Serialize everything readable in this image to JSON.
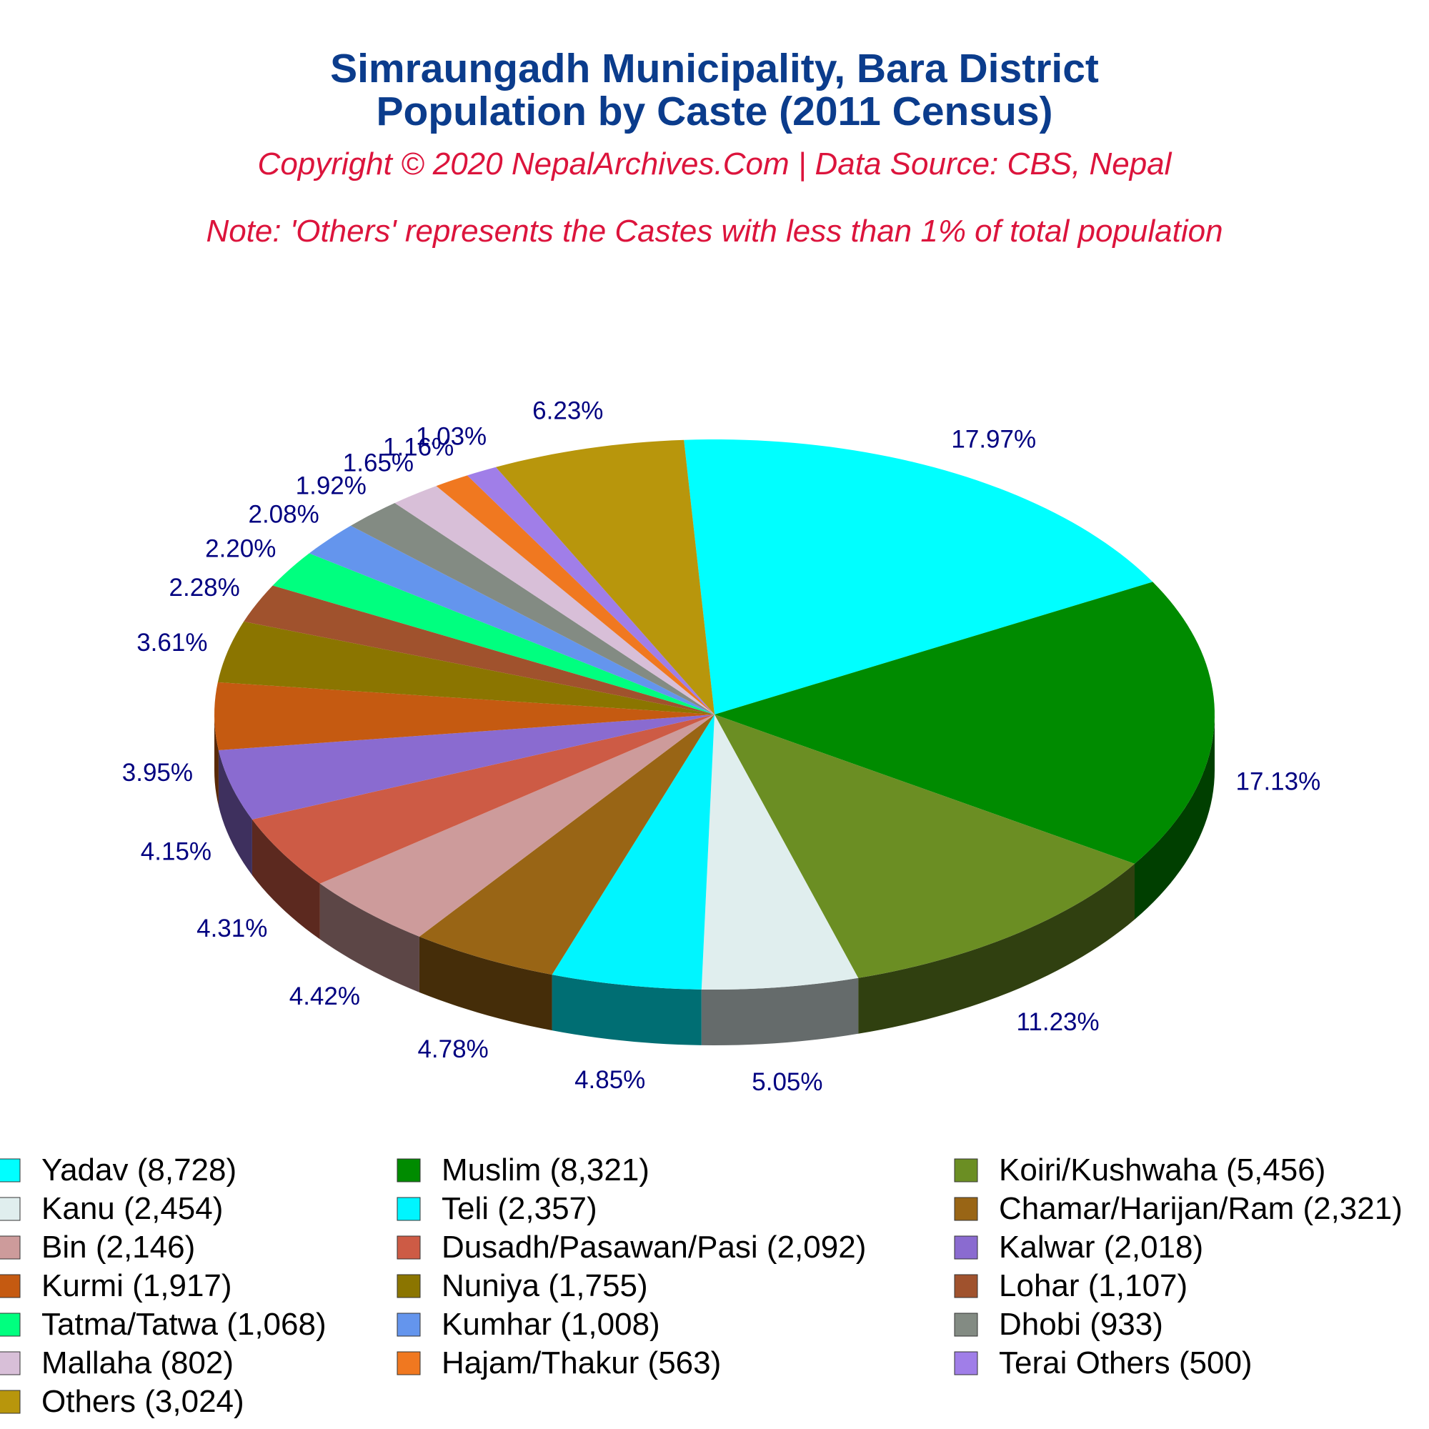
{
  "chart_data": {
    "type": "pie",
    "title": "Simraungadh Municipality, Bara District",
    "title2": "Population by Caste (2011 Census)",
    "copyright": "Copyright © 2020 NepalArchives.Com | Data Source: CBS, Nepal",
    "note": "Note: 'Others' represents the Castes with less than 1% of total population",
    "is_3d": true,
    "slices": [
      {
        "name": "Yadav",
        "value": 8728,
        "percent": "17.97%",
        "legend": "Yadav (8,728)",
        "color": "#00ffff"
      },
      {
        "name": "Muslim",
        "value": 8321,
        "percent": "17.13%",
        "legend": "Muslim (8,321)",
        "color": "#008b00"
      },
      {
        "name": "Koiri/Kushwaha",
        "value": 5456,
        "percent": "11.23%",
        "legend": "Koiri/Kushwaha (5,456)",
        "color": "#6b8e23"
      },
      {
        "name": "Kanu",
        "value": 2454,
        "percent": "5.05%",
        "legend": "Kanu (2,454)",
        "color": "#e0eeee"
      },
      {
        "name": "Teli",
        "value": 2357,
        "percent": "4.85%",
        "legend": "Teli (2,357)",
        "color": "#00f5ff"
      },
      {
        "name": "Chamar/Harijan/Ram",
        "value": 2321,
        "percent": "4.78%",
        "legend": "Chamar/Harijan/Ram (2,321)",
        "color": "#996515"
      },
      {
        "name": "Bin",
        "value": 2146,
        "percent": "4.42%",
        "legend": "Bin (2,146)",
        "color": "#cd9b9b"
      },
      {
        "name": "Dusadh/Pasawan/Pasi",
        "value": 2092,
        "percent": "4.31%",
        "legend": "Dusadh/Pasawan/Pasi (2,092)",
        "color": "#cd5b45"
      },
      {
        "name": "Kalwar",
        "value": 2018,
        "percent": "4.15%",
        "legend": "Kalwar (2,018)",
        "color": "#8a6bd0"
      },
      {
        "name": "Kurmi",
        "value": 1917,
        "percent": "3.95%",
        "legend": "Kurmi (1,917)",
        "color": "#c55a11"
      },
      {
        "name": "Nuniya",
        "value": 1755,
        "percent": "3.61%",
        "legend": "Nuniya (1,755)",
        "color": "#8b7500"
      },
      {
        "name": "Lohar",
        "value": 1107,
        "percent": "2.28%",
        "legend": "Lohar (1,107)",
        "color": "#a0522d"
      },
      {
        "name": "Tatma/Tatwa",
        "value": 1068,
        "percent": "2.20%",
        "legend": "Tatma/Tatwa (1,068)",
        "color": "#00ff7f"
      },
      {
        "name": "Kumhar",
        "value": 1008,
        "percent": "2.08%",
        "legend": "Kumhar (1,008)",
        "color": "#6495ed"
      },
      {
        "name": "Dhobi",
        "value": 933,
        "percent": "1.92%",
        "legend": "Dhobi (933)",
        "color": "#838b83"
      },
      {
        "name": "Mallaha",
        "value": 802,
        "percent": "1.65%",
        "legend": "Mallaha (802)",
        "color": "#d8bfd8"
      },
      {
        "name": "Hajam/Thakur",
        "value": 563,
        "percent": "1.16%",
        "legend": "Hajam/Thakur (563)",
        "color": "#f07820"
      },
      {
        "name": "Terai Others",
        "value": 500,
        "percent": "1.03%",
        "legend": "Terai Others (500)",
        "color": "#a07ee8"
      },
      {
        "name": "Others",
        "value": 3024,
        "percent": "6.23%",
        "legend": "Others (3,024)",
        "color": "#b8960c"
      }
    ]
  }
}
